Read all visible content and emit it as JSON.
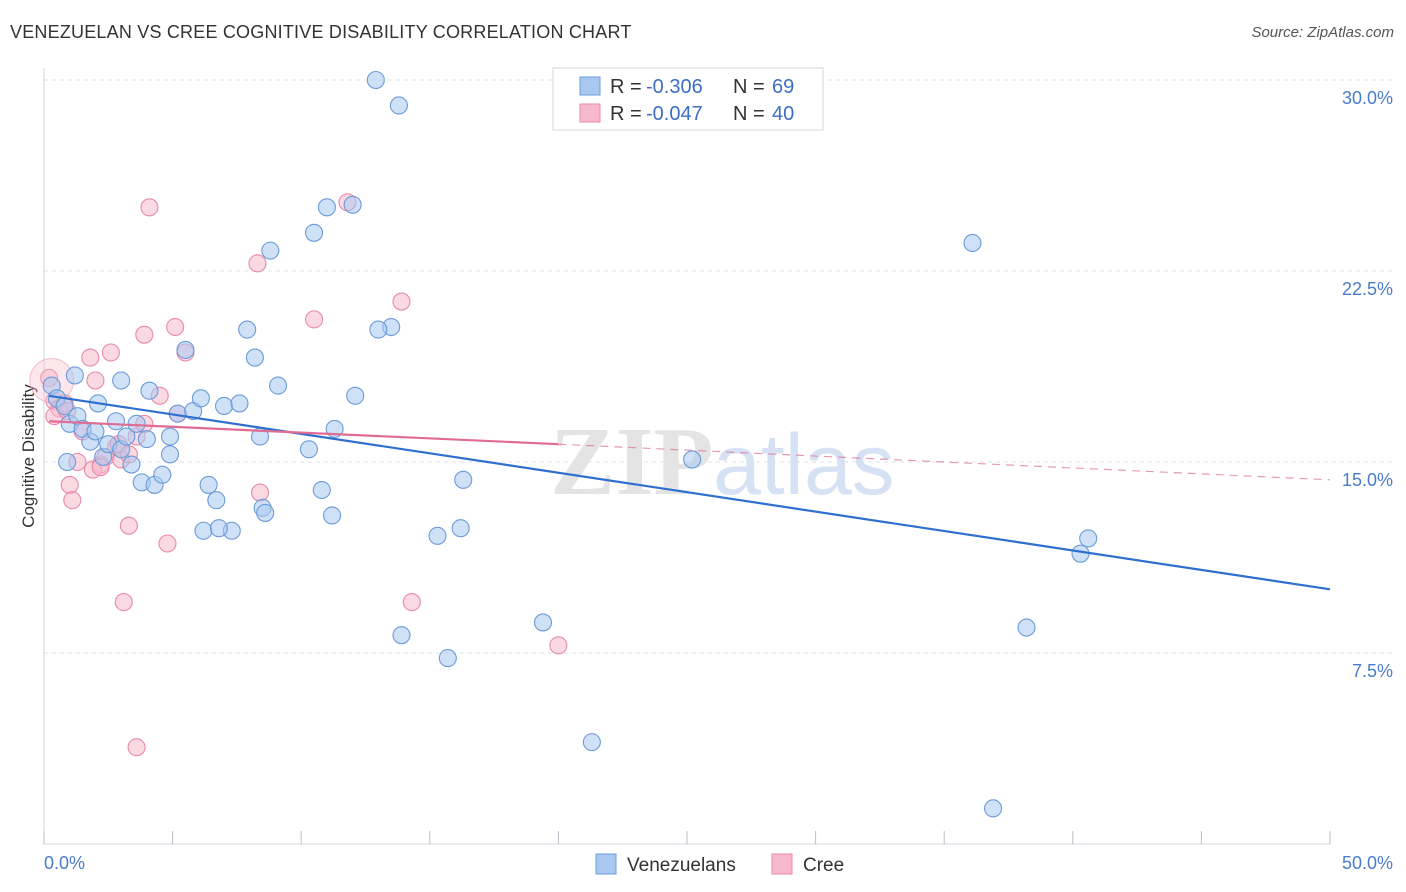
{
  "title": "VENEZUELAN VS CREE COGNITIVE DISABILITY CORRELATION CHART",
  "source": "Source: ZipAtlas.com",
  "watermark": "ZIPatlas",
  "colors": {
    "blue_fill": "#a8c8f0",
    "blue_stroke": "#6b9bd8",
    "blue_line": "#2f6fd0",
    "pink_fill": "#f6b9cc",
    "pink_stroke": "#e88aa8",
    "pink_line": "#e06c94",
    "axis_text": "#4a7cc9",
    "grid": "#dde3ea"
  },
  "legend": {
    "rows": [
      {
        "r_label": "R = ",
        "r_value": "-0.306",
        "n_label": "N = ",
        "n_value": "69"
      },
      {
        "r_label": "R = ",
        "r_value": "-0.047",
        "n_label": "N = ",
        "n_value": "40"
      }
    ]
  },
  "bottom_legend": [
    "Venezuelans",
    "Cree"
  ],
  "chart_data": {
    "type": "scatter",
    "xlabel": "",
    "ylabel": "Cognitive Disability",
    "xlim": [
      0,
      50
    ],
    "ylim": [
      0,
      30
    ],
    "x_tick_labels": [
      "0.0%",
      "50.0%"
    ],
    "y_ticks": [
      7.5,
      15.0,
      22.5,
      30.0
    ],
    "y_tick_labels": [
      "7.5%",
      "15.0%",
      "22.5%",
      "30.0%"
    ],
    "grid": true,
    "series": [
      {
        "name": "Venezuelans",
        "trend": {
          "x0": 0.2,
          "y0": 17.6,
          "x1": 50,
          "y1": 10.0
        },
        "points": [
          [
            0.3,
            18.0
          ],
          [
            0.5,
            17.5
          ],
          [
            0.8,
            17.2
          ],
          [
            1.0,
            16.5
          ],
          [
            1.3,
            16.8
          ],
          [
            1.5,
            16.3
          ],
          [
            1.8,
            15.8
          ],
          [
            2.0,
            16.2
          ],
          [
            2.3,
            15.2
          ],
          [
            2.5,
            15.7
          ],
          [
            2.8,
            16.6
          ],
          [
            3.0,
            15.5
          ],
          [
            3.2,
            16.0
          ],
          [
            3.4,
            14.9
          ],
          [
            3.6,
            16.5
          ],
          [
            3.8,
            14.2
          ],
          [
            4.0,
            15.9
          ],
          [
            4.3,
            14.1
          ],
          [
            4.6,
            14.5
          ],
          [
            4.9,
            15.3
          ],
          [
            5.2,
            16.9
          ],
          [
            5.5,
            19.4
          ],
          [
            5.8,
            17.0
          ],
          [
            6.1,
            17.5
          ],
          [
            6.4,
            14.1
          ],
          [
            6.7,
            13.5
          ],
          [
            7.0,
            17.2
          ],
          [
            7.3,
            12.3
          ],
          [
            7.6,
            17.3
          ],
          [
            7.9,
            20.2
          ],
          [
            8.2,
            19.1
          ],
          [
            8.5,
            13.2
          ],
          [
            8.8,
            23.3
          ],
          [
            9.1,
            18.0
          ],
          [
            4.1,
            17.8
          ],
          [
            3.0,
            18.2
          ],
          [
            12.9,
            30.0
          ],
          [
            13.8,
            29.0
          ],
          [
            10.5,
            24.0
          ],
          [
            11.0,
            25.0
          ],
          [
            12.0,
            25.1
          ],
          [
            13.5,
            20.3
          ],
          [
            13.0,
            20.2
          ],
          [
            12.1,
            17.6
          ],
          [
            11.3,
            16.3
          ],
          [
            10.8,
            13.9
          ],
          [
            11.2,
            12.9
          ],
          [
            10.3,
            15.5
          ],
          [
            15.3,
            12.1
          ],
          [
            16.2,
            12.4
          ],
          [
            16.3,
            14.3
          ],
          [
            15.7,
            7.3
          ],
          [
            13.9,
            8.2
          ],
          [
            19.4,
            8.7
          ],
          [
            21.3,
            4.0
          ],
          [
            25.2,
            15.1
          ],
          [
            36.1,
            23.6
          ],
          [
            38.2,
            8.5
          ],
          [
            40.6,
            12.0
          ],
          [
            40.3,
            11.4
          ],
          [
            36.9,
            1.4
          ],
          [
            6.2,
            12.3
          ],
          [
            6.8,
            12.4
          ],
          [
            8.6,
            13.0
          ],
          [
            2.1,
            17.3
          ],
          [
            1.2,
            18.4
          ],
          [
            0.9,
            15.0
          ],
          [
            4.9,
            16.0
          ],
          [
            8.4,
            16.0
          ]
        ]
      },
      {
        "name": "Cree",
        "trend": {
          "x0": 0.2,
          "y0": 16.6,
          "x1": 20,
          "y1": 15.7,
          "dash_x1": 50,
          "dash_y1": 14.3
        },
        "points": [
          [
            0.2,
            18.3
          ],
          [
            0.4,
            17.4
          ],
          [
            0.6,
            17.1
          ],
          [
            0.8,
            17.3
          ],
          [
            1.0,
            14.1
          ],
          [
            1.1,
            13.5
          ],
          [
            1.3,
            15.0
          ],
          [
            1.5,
            16.2
          ],
          [
            1.8,
            19.1
          ],
          [
            2.0,
            18.2
          ],
          [
            2.2,
            14.9
          ],
          [
            2.4,
            15.2
          ],
          [
            2.6,
            19.3
          ],
          [
            2.8,
            15.6
          ],
          [
            3.0,
            15.1
          ],
          [
            3.1,
            9.5
          ],
          [
            3.3,
            12.5
          ],
          [
            3.6,
            16.0
          ],
          [
            3.9,
            20.0
          ],
          [
            4.1,
            25.0
          ],
          [
            4.5,
            17.6
          ],
          [
            4.8,
            11.8
          ],
          [
            5.1,
            20.3
          ],
          [
            5.5,
            19.3
          ],
          [
            3.6,
            3.8
          ],
          [
            8.3,
            22.8
          ],
          [
            8.4,
            13.8
          ],
          [
            10.5,
            20.6
          ],
          [
            11.8,
            25.2
          ],
          [
            13.9,
            21.3
          ],
          [
            14.3,
            9.5
          ],
          [
            20.0,
            7.8
          ],
          [
            1.9,
            14.7
          ],
          [
            2.2,
            14.8
          ],
          [
            3.9,
            16.5
          ],
          [
            5.2,
            16.9
          ],
          [
            0.4,
            16.8
          ],
          [
            0.9,
            17.0
          ],
          [
            2.9,
            15.7
          ],
          [
            3.3,
            15.3
          ]
        ]
      }
    ]
  }
}
